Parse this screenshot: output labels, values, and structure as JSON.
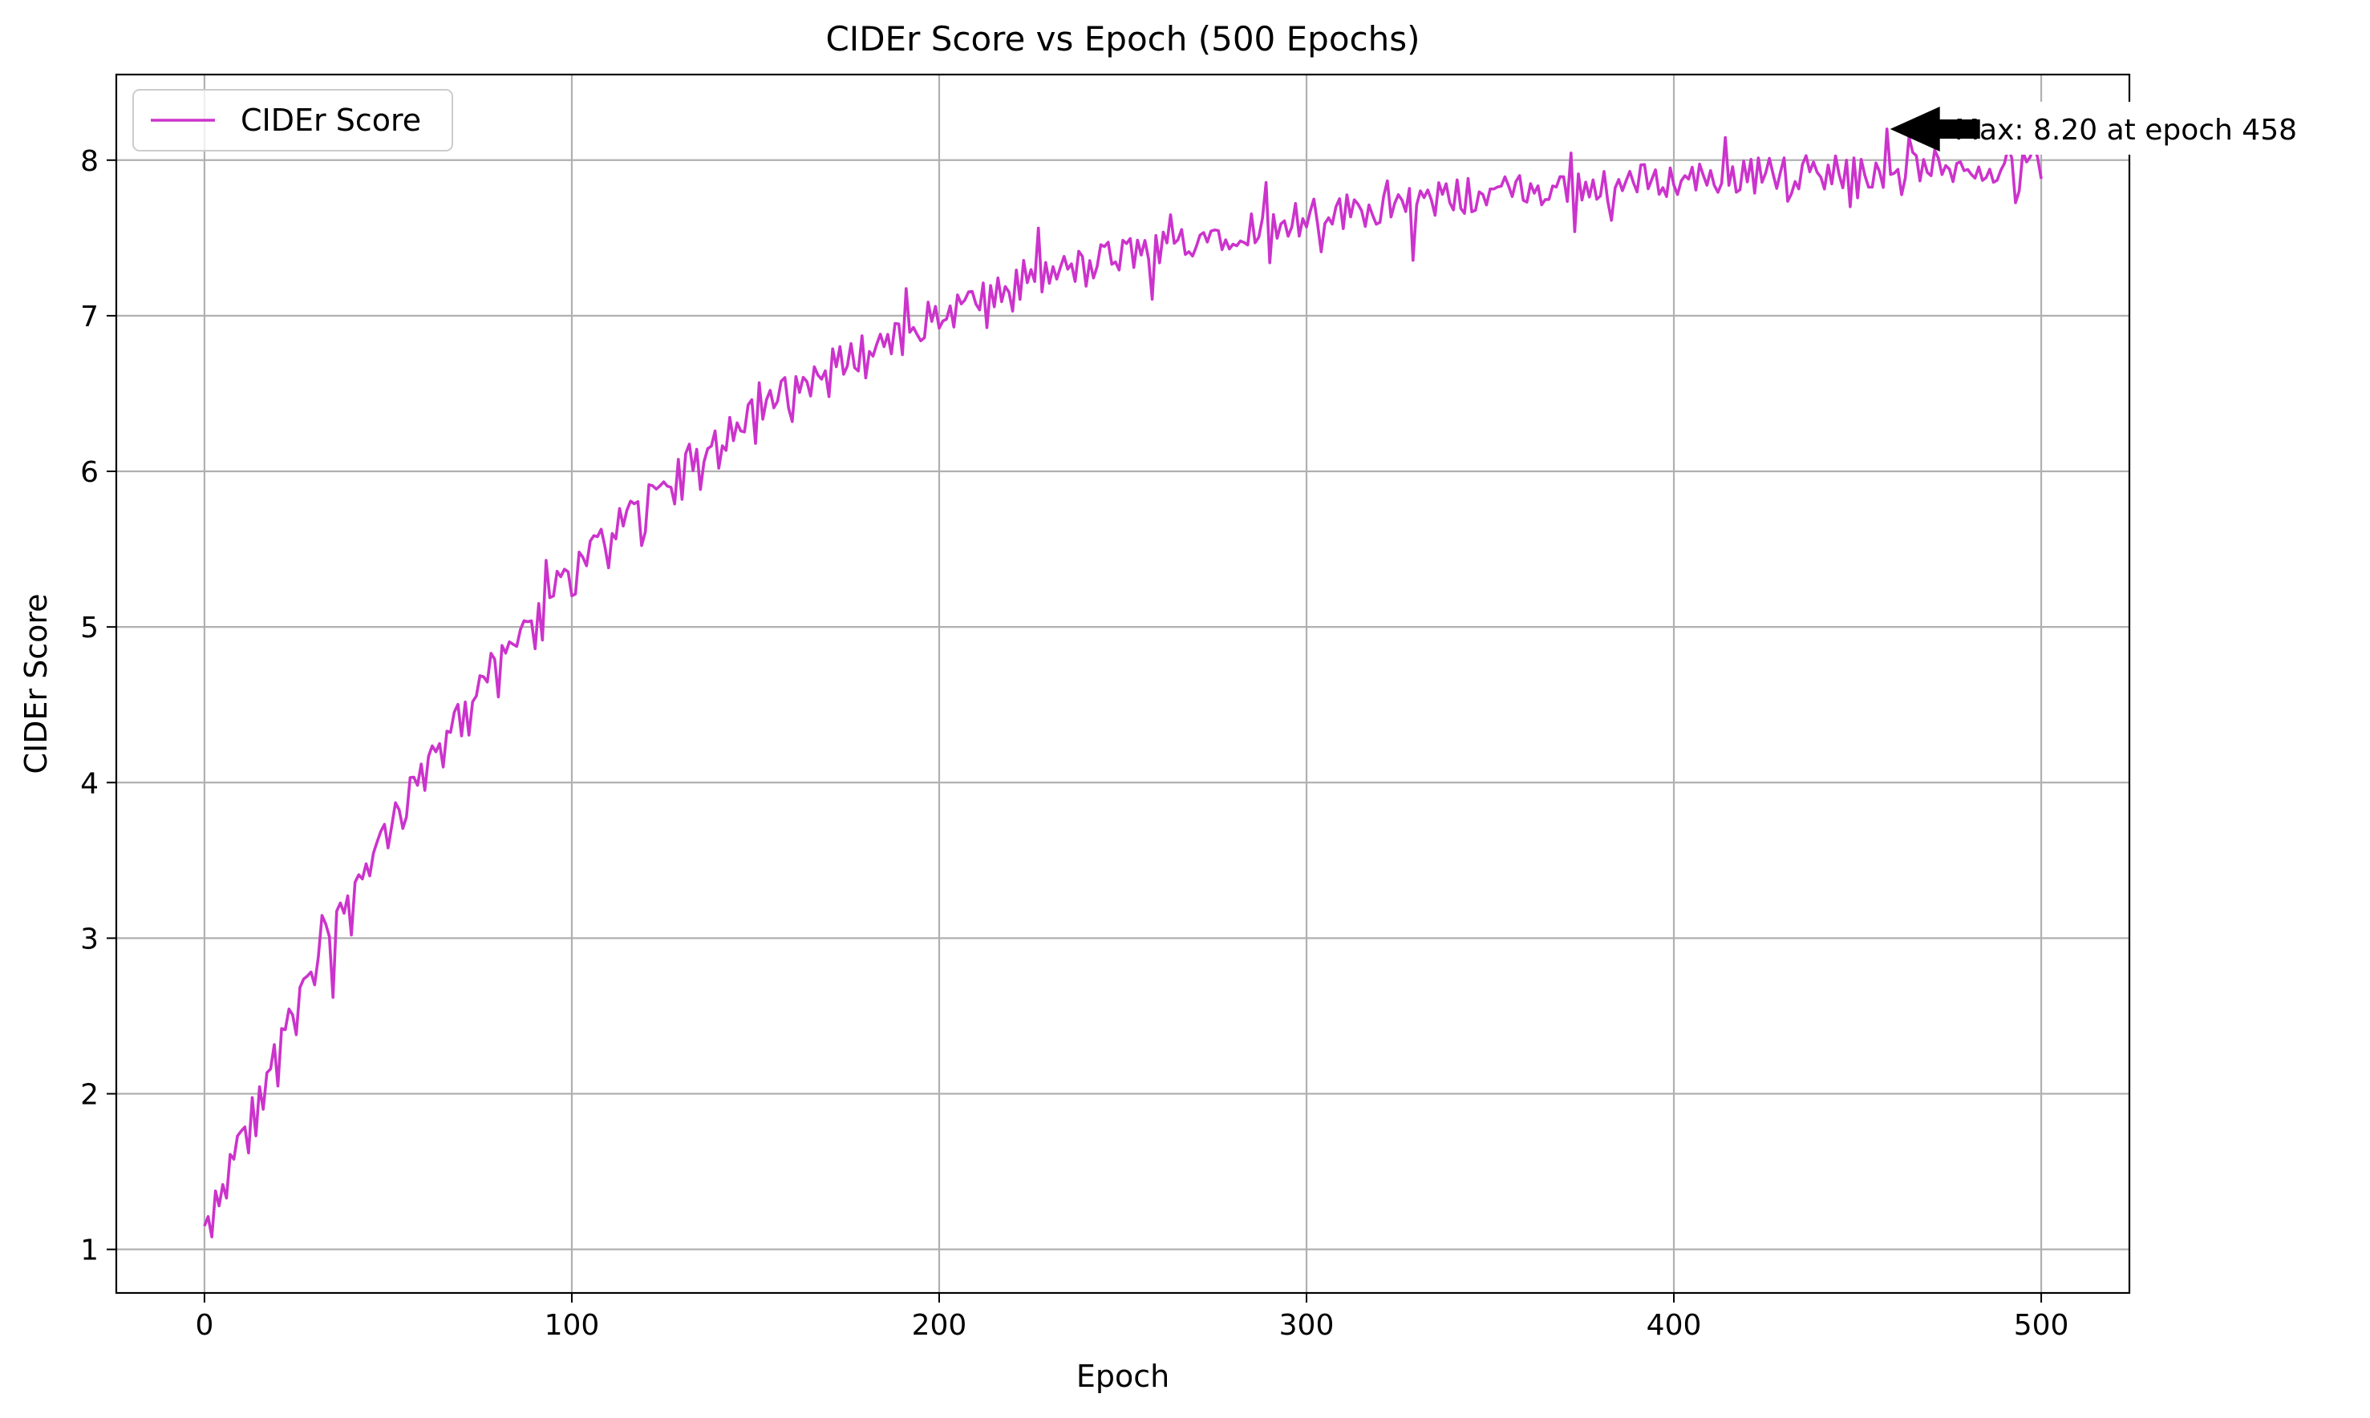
{
  "chart_data": {
    "type": "line",
    "title": "CIDEr Score vs Epoch (500 Epochs)",
    "xlabel": "Epoch",
    "ylabel": "CIDEr Score",
    "xlim": [
      -24,
      524
    ],
    "ylim": [
      0.72,
      8.55
    ],
    "xticks": [
      0,
      100,
      200,
      300,
      400,
      500
    ],
    "yticks": [
      1,
      2,
      3,
      4,
      5,
      6,
      7,
      8
    ],
    "grid": true,
    "legend_position": "upper-left",
    "series": [
      {
        "name": "CIDEr Score",
        "color": "#cc33cc",
        "model": {
          "start": 1.13,
          "plateau": 8.03,
          "tau": 105
        },
        "x": [
          0,
          2,
          4,
          6,
          8,
          10,
          12,
          14,
          16,
          18,
          20,
          25,
          30,
          35,
          40,
          45,
          50,
          55,
          60,
          65,
          70,
          80,
          90,
          100,
          110,
          120,
          130,
          140,
          150,
          160,
          170,
          180,
          190,
          200,
          220,
          240,
          260,
          280,
          300,
          320,
          340,
          360,
          380,
          400,
          420,
          440,
          458,
          470,
          480,
          490,
          500
        ],
        "y": [
          1.15,
          1.08,
          1.28,
          1.33,
          1.58,
          1.76,
          1.62,
          1.73,
          1.9,
          2.16,
          2.05,
          2.38,
          2.7,
          2.62,
          3.02,
          3.4,
          3.58,
          3.78,
          3.95,
          4.1,
          4.3,
          4.55,
          4.86,
          5.2,
          5.38,
          5.61,
          5.82,
          6.02,
          6.18,
          6.32,
          6.48,
          6.6,
          6.75,
          6.92,
          7.03,
          7.19,
          7.34,
          7.46,
          7.57,
          7.6,
          7.68,
          7.73,
          7.77,
          7.84,
          7.86,
          7.89,
          8.2,
          7.9,
          7.94,
          7.98,
          7.88
        ]
      }
    ],
    "annotation": {
      "text": "Max: 8.20 at epoch 458",
      "x": 458,
      "y": 8.2
    }
  }
}
